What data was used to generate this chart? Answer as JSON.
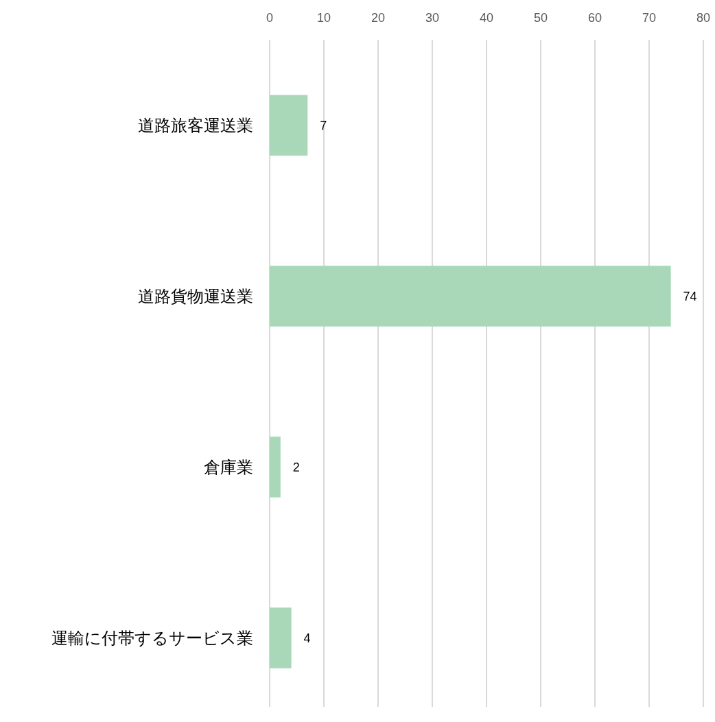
{
  "chart_data": {
    "type": "bar",
    "orientation": "horizontal",
    "categories": [
      "道路旅客運送業",
      "道路貨物運送業",
      "倉庫業",
      "運輸に付帯するサービス業"
    ],
    "values": [
      7,
      74,
      2,
      4
    ],
    "color": "#a9d8b8",
    "xlim": [
      0,
      80
    ],
    "xticks": [
      0,
      10,
      20,
      30,
      40,
      50,
      60,
      70,
      80
    ],
    "grid": "x",
    "data_labels": true
  }
}
